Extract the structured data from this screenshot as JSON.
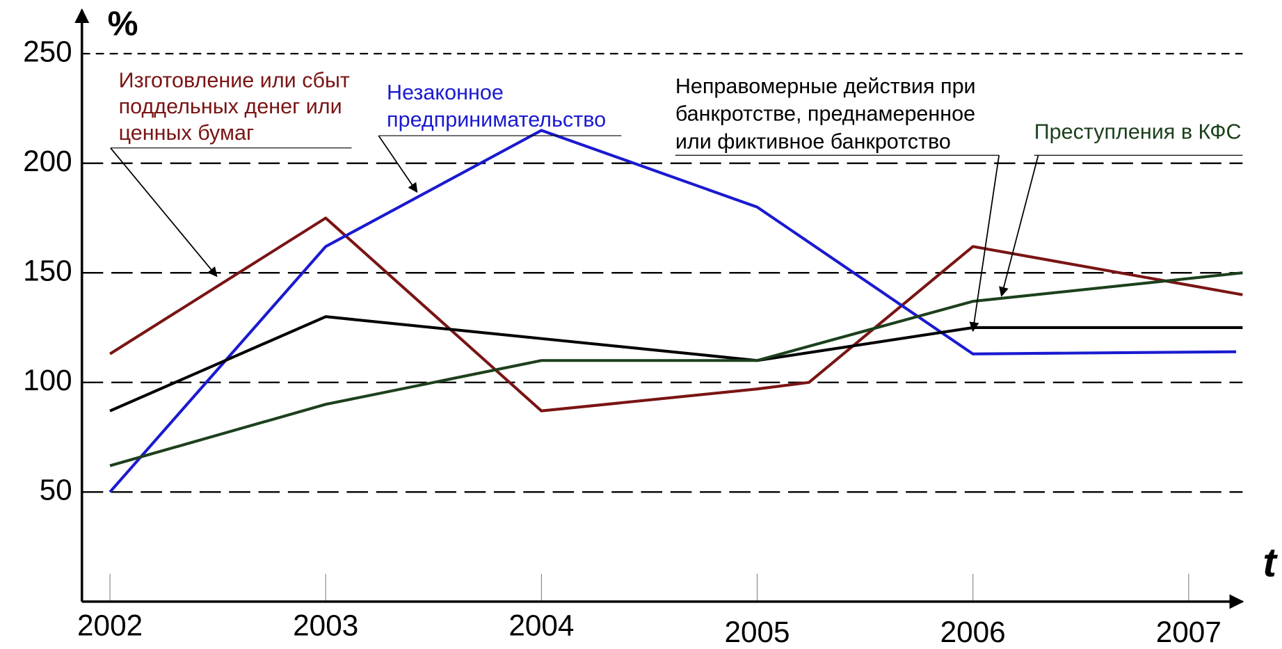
{
  "chart_data": {
    "type": "line",
    "ylabel": "%",
    "xlabel": "t",
    "xlim": [
      2001.87,
      2007.25
    ],
    "xticks": [
      2002,
      2003,
      2004,
      2005,
      2006,
      2007
    ],
    "ylim": [
      0,
      270
    ],
    "yticks": [
      50,
      100,
      150,
      200,
      250
    ],
    "grid": true,
    "series": [
      {
        "label": [
          "Изготовление или сбыт",
          "поддельных денег или",
          "ценных бумаг"
        ],
        "color": "#7a1414",
        "x": [
          2002,
          2003,
          2004,
          2005,
          2005.24,
          2006,
          2007.25
        ],
        "values": [
          113,
          175,
          87,
          97,
          100,
          162,
          140
        ]
      },
      {
        "label": [
          "Незаконное",
          "предпринимательство"
        ],
        "color": "#1a1ad0",
        "x": [
          2002,
          2003,
          2004,
          2005,
          2006,
          2007.22
        ],
        "values": [
          50,
          162,
          215,
          180,
          113,
          114
        ]
      },
      {
        "label": [
          "Неправомерные действия при",
          "банкротстве, преднамеренное",
          "или фиктивное банкротство"
        ],
        "color": "#000000",
        "x": [
          2002,
          2003,
          2004,
          2005,
          2006,
          2007.25
        ],
        "values": [
          87,
          130,
          120,
          110,
          125,
          125
        ]
      },
      {
        "label": [
          "Преступления в КФС"
        ],
        "color": "#1c401c",
        "x": [
          2002,
          2003,
          2004,
          2005,
          2006,
          2007.25
        ],
        "values": [
          62,
          90,
          110,
          110,
          137,
          150
        ]
      }
    ]
  }
}
